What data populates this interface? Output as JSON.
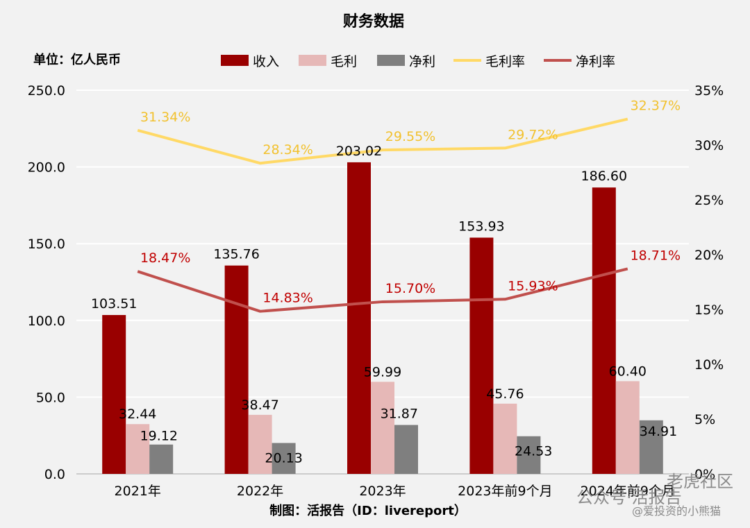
{
  "chart_data": {
    "type": "bar",
    "title": "财务数据",
    "unit_label": "单位：亿人民币",
    "categories": [
      "2021年",
      "2022年",
      "2023年",
      "2023年前9个月",
      "2024年前9个月"
    ],
    "series": [
      {
        "name": "收入",
        "kind": "bar",
        "axis": "left",
        "color": "#990000",
        "values": [
          103.51,
          135.76,
          203.02,
          153.93,
          186.6
        ],
        "labels": [
          "103.51",
          "135.76",
          "203.02",
          "153.93",
          "186.60"
        ]
      },
      {
        "name": "毛利",
        "kind": "bar",
        "axis": "left",
        "color": "#e6b8b7",
        "values": [
          32.44,
          38.47,
          59.99,
          45.76,
          60.4
        ],
        "labels": [
          "32.44",
          "38.47",
          "59.99",
          "45.76",
          "60.40"
        ]
      },
      {
        "name": "净利",
        "kind": "bar",
        "axis": "left",
        "color": "#7f7f7f",
        "values": [
          19.12,
          20.13,
          31.87,
          24.53,
          34.91
        ],
        "labels": [
          "19.12",
          "20.13",
          "31.87",
          "24.53",
          "34.91"
        ]
      },
      {
        "name": "毛利率",
        "kind": "line",
        "axis": "right",
        "color": "#ffd966",
        "label_color": "#f2c12e",
        "values": [
          31.34,
          28.34,
          29.55,
          29.72,
          32.37
        ],
        "labels": [
          "31.34%",
          "28.34%",
          "29.55%",
          "29.72%",
          "32.37%"
        ]
      },
      {
        "name": "净利率",
        "kind": "line",
        "axis": "right",
        "color": "#c0504d",
        "label_color": "#c00000",
        "values": [
          18.47,
          14.83,
          15.7,
          15.93,
          18.71
        ],
        "labels": [
          "18.47%",
          "14.83%",
          "15.70%",
          "15.93%",
          "18.71%"
        ]
      }
    ],
    "y_left": {
      "min": 0,
      "max": 250,
      "ticks": [
        "0.0",
        "50.0",
        "100.0",
        "150.0",
        "200.0",
        "250.0"
      ]
    },
    "y_right": {
      "min": 0,
      "max": 35,
      "ticks": [
        "0%",
        "5%",
        "10%",
        "15%",
        "20%",
        "25%",
        "30%",
        "35%"
      ]
    },
    "grid": true,
    "legend_position": "top"
  },
  "footer": "制图：活报告（ID：livereport）",
  "watermarks": {
    "line1": "公众号·活报告",
    "line2": "@爱投资的小熊猫",
    "corner": "老虎社区"
  }
}
